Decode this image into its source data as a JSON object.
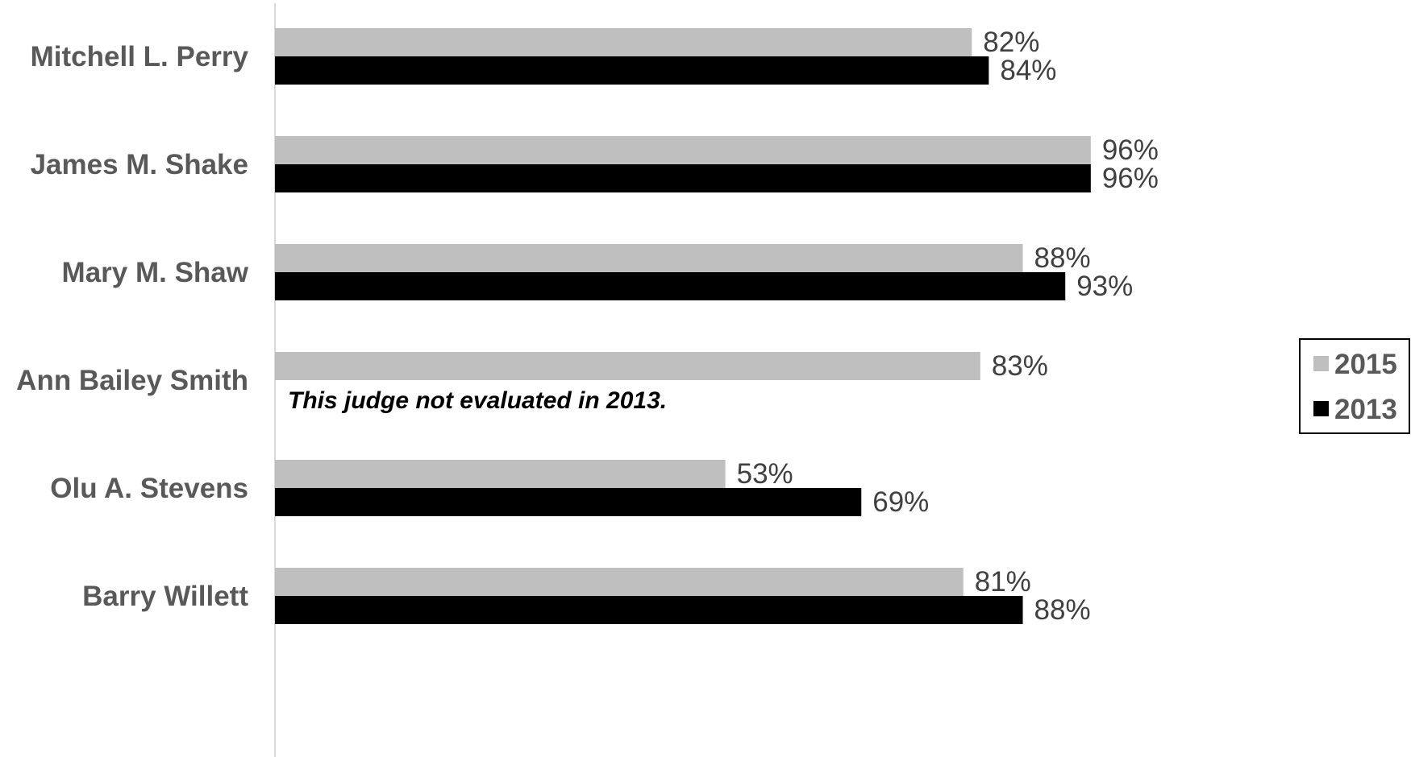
{
  "chart_data": {
    "type": "bar",
    "orientation": "horizontal",
    "categories": [
      "Mitchell L. Perry",
      "James M. Shake",
      "Mary M. Shaw",
      "Ann Bailey Smith",
      "Olu A. Stevens",
      "Barry Willett"
    ],
    "series": [
      {
        "name": "2015",
        "color": "#bfbfbf",
        "values": [
          82,
          96,
          88,
          83,
          53,
          81
        ],
        "labels": [
          "82%",
          "96%",
          "88%",
          "83%",
          "53%",
          "81%"
        ]
      },
      {
        "name": "2013",
        "color": "#000000",
        "values": [
          84,
          96,
          93,
          null,
          69,
          88
        ],
        "labels": [
          "84%",
          "96%",
          "93%",
          "",
          "69%",
          "88%"
        ]
      }
    ],
    "annotations": [
      {
        "category": "Ann Bailey Smith",
        "text": "This judge not evaluated in 2013."
      }
    ],
    "xlim": [
      0,
      100
    ],
    "grid": false,
    "legend_position": "right",
    "title": "",
    "xlabel": "",
    "ylabel": ""
  }
}
